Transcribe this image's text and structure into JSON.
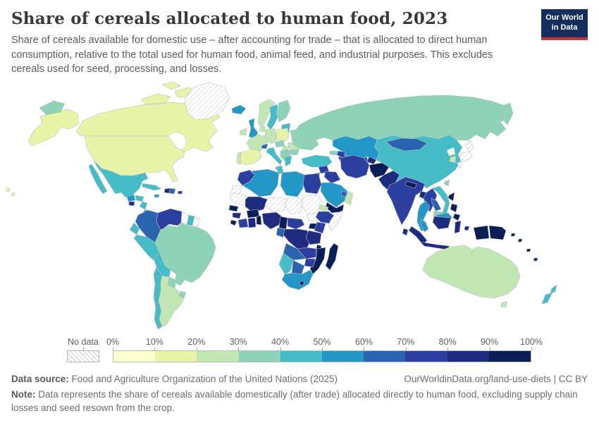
{
  "header": {
    "title": "Share of cereals allocated to human food, 2023",
    "subtitle": "Share of cereals available for domestic use – after accounting for trade – that is allocated to direct human consumption, relative to the total used for human food, animal feed, and industrial purposes. This excludes cereals used for seed, processing, and losses.",
    "logo_line1": "Our World",
    "logo_line2": "in Data",
    "logo_bg": "#142f5e",
    "logo_accent": "#d1342c"
  },
  "legend": {
    "no_data_label": "No data",
    "tick_labels": [
      "0%",
      "10%",
      "20%",
      "30%",
      "40%",
      "50%",
      "60%",
      "70%",
      "80%",
      "90%",
      "100%"
    ],
    "colors": [
      "#ffffcf",
      "#e7f4a8",
      "#c2e7b4",
      "#8ed2b8",
      "#45bcc6",
      "#2397c6",
      "#2a63ae",
      "#2c3e9e",
      "#1f2b7e",
      "#0b1d55"
    ]
  },
  "footer": {
    "source_label": "Data source:",
    "source_value": " Food and Agriculture Organization of the United Nations (2025)",
    "link": "OurWorldinData.org/land-use-diets | CC BY",
    "note_label": "Note:",
    "note_value": " Data represents the share of cereals available domestically (after trade) allocated directly to human food, excluding supply chain losses and seed resown from the crop."
  },
  "chart_data": {
    "type": "heatmap",
    "title": "Share of cereals allocated to human food, 2023",
    "legend_bins_percent": [
      0,
      10,
      20,
      30,
      40,
      50,
      60,
      70,
      80,
      90,
      100
    ],
    "note": "choropleth world map; values are 10-percentage-point bins encoded in map.regions as bin index 0-9"
  },
  "map": {
    "border_color": "#b8bfc7",
    "regions": {
      "canada": 1,
      "alaska": 1,
      "united-states": 1,
      "hawaii": 1,
      "greenland": "no-data",
      "mexico": 4,
      "guatemala": 5,
      "honduras": 4,
      "el-salvador": 8,
      "nicaragua": 4,
      "costa-rica": 5,
      "panama": 6,
      "cuba": 4,
      "jamaica": 5,
      "haiti": 8,
      "dominican-republic": 6,
      "puerto-rico": 7,
      "colombia": 6,
      "venezuela": 7,
      "guyana": "no-data",
      "suriname": 4,
      "french-guiana": "no-data",
      "ecuador": 4,
      "peru": 4,
      "brazil": 3,
      "bolivia": 4,
      "paraguay": 3,
      "uruguay": 3,
      "argentina": 2,
      "chile": 4,
      "iceland": 5,
      "ireland": 2,
      "united-kingdom": 5,
      "norway": 2,
      "sweden": 4,
      "finland": 3,
      "denmark": 2,
      "baltics": 4,
      "belarus": 3,
      "poland": 1,
      "germany": 2,
      "benelux": 2,
      "france": 2,
      "spain": 1,
      "portugal": 2,
      "switzerland": 6,
      "italy": 4,
      "czechia-austria": 3,
      "hungary": 2,
      "balkans": 3,
      "romania": 2,
      "bulgaria": 3,
      "greece": 4,
      "ukraine": 3,
      "russia": 3,
      "russia-east": 3,
      "kazakhstan": 5,
      "uzbekistan": 6,
      "turkmenistan": 7,
      "kyrgyzstan": 8,
      "tajikistan": 8,
      "turkey": 4,
      "georgia": 3,
      "azerbaijan": 7,
      "syria": 7,
      "israel-jordan": 6,
      "iraq": 7,
      "iran": 7,
      "saudi-arabia": 5,
      "yemen": 9,
      "oman": 2,
      "uae": 6,
      "afghanistan": 9,
      "pakistan": 8,
      "india": 7,
      "nepal": 9,
      "bangladesh": 8,
      "sri-lanka": 8,
      "myanmar": 7,
      "china": 4,
      "mongolia": 6,
      "north-korea": "no-data",
      "south-korea": 2,
      "japan": "no-data",
      "taiwan": 3,
      "thailand": 5,
      "laos": 6,
      "cambodia": 3,
      "vietnam": 4,
      "malaysia-peninsula": 5,
      "borneo-malaysia": 5,
      "borneo-indonesia": 8,
      "sumatra": 8,
      "java": 8,
      "sulawesi": 8,
      "moluccas": 8,
      "papua-indonesia": 9,
      "papua-new-guinea": 9,
      "philippines": 9,
      "pacific-islands": 9,
      "australia": 2,
      "tasmania": 2,
      "new-zealand": 4,
      "morocco": 7,
      "western-sahara": "no-data",
      "algeria": 5,
      "tunisia": 4,
      "libya": 5,
      "egypt": 7,
      "mauritania": "no-data",
      "mali": 8,
      "niger": "no-data",
      "chad": "no-data",
      "sudan": "no-data",
      "south-sudan": "no-data",
      "eritrea": 2,
      "ethiopia": 7,
      "somalia": "no-data",
      "senegal": 9,
      "guinea": 8,
      "sierra-leone": 9,
      "ivory-coast": 7,
      "ghana": 8,
      "burkina-faso": 9,
      "togo-benin": 9,
      "nigeria": 8,
      "cameroon": 9,
      "central-african-republic": 7,
      "south-sudan2": "no-data",
      "uganda": 9,
      "kenya": 7,
      "drc": 8,
      "congo-gabon": 6,
      "tanzania": 8,
      "angola": 6,
      "zambia": 7,
      "malawi": 9,
      "mozambique": 9,
      "zimbabwe": 7,
      "namibia": 4,
      "botswana": 6,
      "south-africa": 5,
      "lesotho": 8,
      "madagascar": 9
    }
  }
}
